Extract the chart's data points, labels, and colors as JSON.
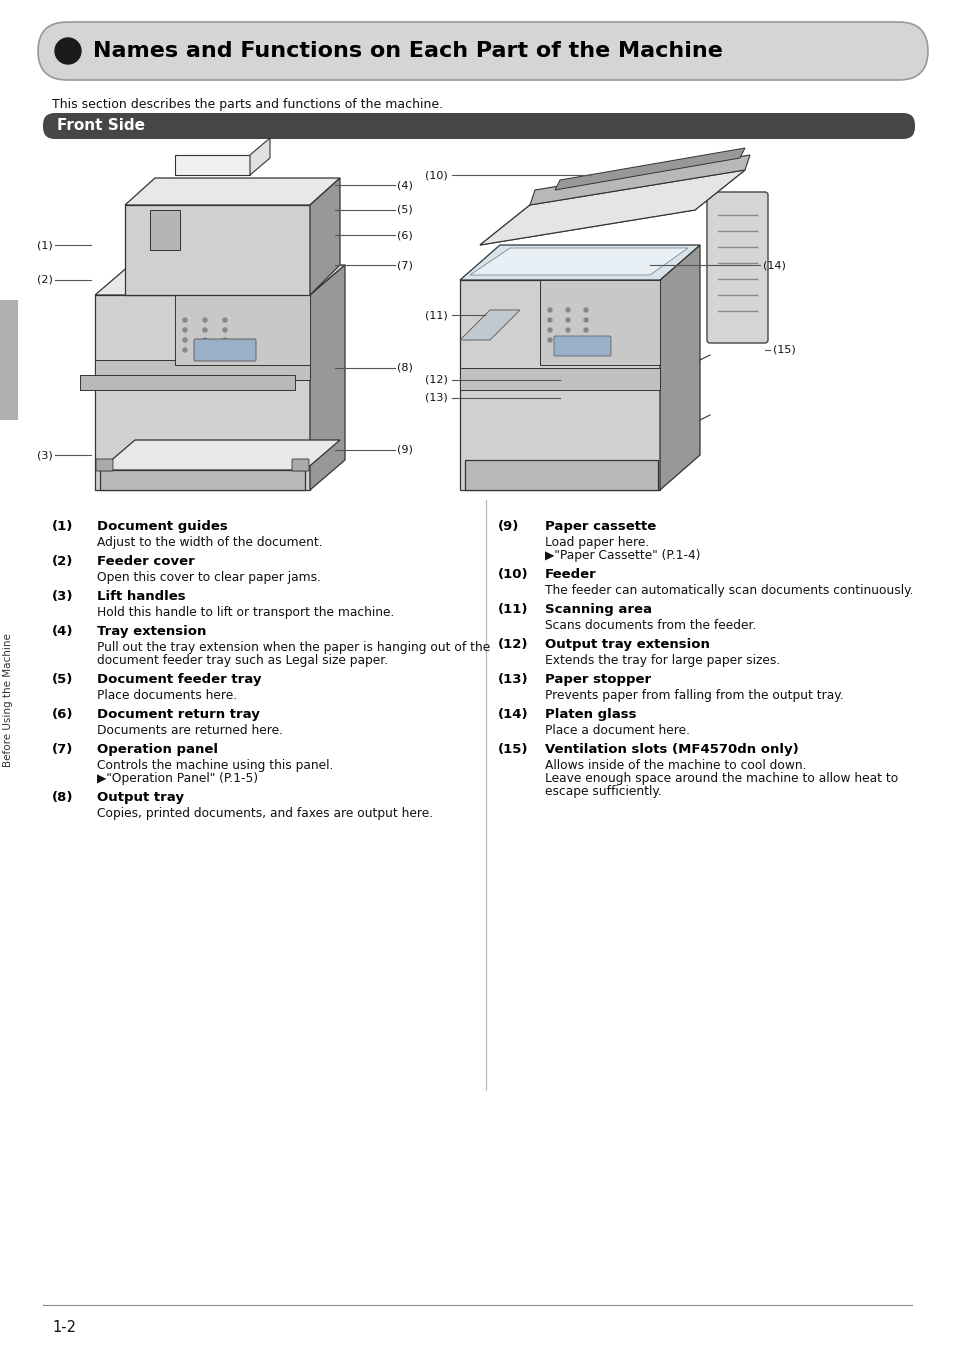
{
  "title": "Names and Functions on Each Part of the Machine",
  "subtitle": "This section describes the parts and functions of the machine.",
  "section_title": "Front Side",
  "bg_color": "#ffffff",
  "header_bg": "#d8d8d8",
  "section_bg": "#464646",
  "section_text_color": "#ffffff",
  "sidebar_color": "#909090",
  "page_number": "1-2",
  "sidebar_text": "Before Using the Machine",
  "items_left": [
    {
      "num": "(1)",
      "title": "Document guides",
      "desc": [
        "Adjust to the width of the document."
      ]
    },
    {
      "num": "(2)",
      "title": "Feeder cover",
      "desc": [
        "Open this cover to clear paper jams."
      ]
    },
    {
      "num": "(3)",
      "title": "Lift handles",
      "desc": [
        "Hold this handle to lift or transport the machine."
      ]
    },
    {
      "num": "(4)",
      "title": "Tray extension",
      "desc": [
        "Pull out the tray extension when the paper is hanging out of the",
        "document feeder tray such as Legal size paper."
      ]
    },
    {
      "num": "(5)",
      "title": "Document feeder tray",
      "desc": [
        "Place documents here."
      ]
    },
    {
      "num": "(6)",
      "title": "Document return tray",
      "desc": [
        "Documents are returned here."
      ]
    },
    {
      "num": "(7)",
      "title": "Operation panel",
      "desc": [
        "Controls the machine using this panel.",
        "▶\"Operation Panel\" (P.1-5)"
      ]
    },
    {
      "num": "(8)",
      "title": "Output tray",
      "desc": [
        "Copies, printed documents, and faxes are output here."
      ]
    }
  ],
  "items_right": [
    {
      "num": "(9)",
      "title": "Paper cassette",
      "desc": [
        "Load paper here.",
        "▶\"Paper Cassette\" (P.1-4)"
      ]
    },
    {
      "num": "(10)",
      "title": "Feeder",
      "desc": [
        "The feeder can automatically scan documents continuously."
      ]
    },
    {
      "num": "(11)",
      "title": "Scanning area",
      "desc": [
        "Scans documents from the feeder."
      ]
    },
    {
      "num": "(12)",
      "title": "Output tray extension",
      "desc": [
        "Extends the tray for large paper sizes."
      ]
    },
    {
      "num": "(13)",
      "title": "Paper stopper",
      "desc": [
        "Prevents paper from falling from the output tray."
      ]
    },
    {
      "num": "(14)",
      "title": "Platen glass",
      "desc": [
        "Place a document here."
      ]
    },
    {
      "num": "(15)",
      "title": "Ventilation slots (MF4570dn only)",
      "desc": [
        "Allows inside of the machine to cool down.",
        "Leave enough space around the machine to allow heat to",
        "escape sufficiently."
      ]
    }
  ],
  "diagram_image_path": null
}
